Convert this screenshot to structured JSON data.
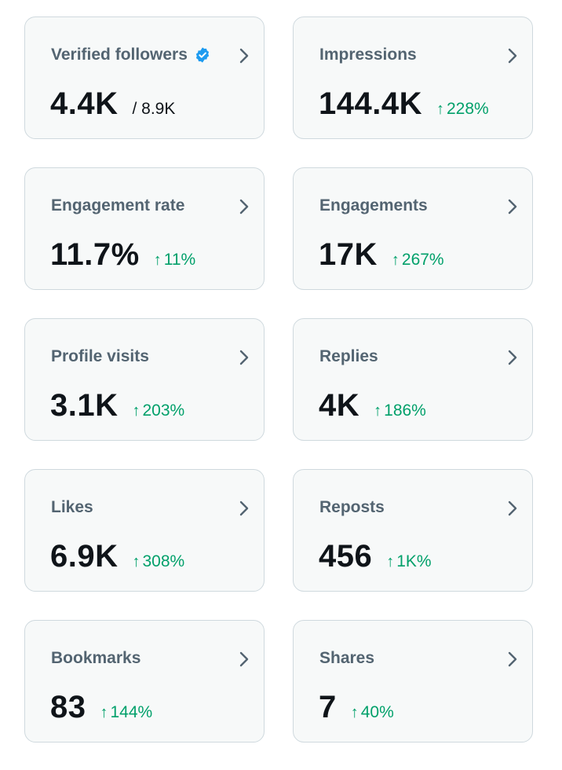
{
  "colors": {
    "card_background": "#f7f9f9",
    "card_border": "#cfd9de",
    "title": "#536471",
    "value": "#0f1419",
    "positive_delta": "#00a06a",
    "verified_badge": "#1d9bf0",
    "chevron": "#536471"
  },
  "metrics": [
    {
      "title": "Verified followers",
      "value": "4.4K",
      "secondary": "/ 8.9K",
      "verified_icon": "verified-badge-icon"
    },
    {
      "title": "Impressions",
      "value": "144.4K",
      "delta": "228%",
      "delta_icon": "arrow-up-icon"
    },
    {
      "title": "Engagement rate",
      "value": "11.7%",
      "delta": "11%",
      "delta_icon": "arrow-up-icon"
    },
    {
      "title": "Engagements",
      "value": "17K",
      "delta": "267%",
      "delta_icon": "arrow-up-icon"
    },
    {
      "title": "Profile visits",
      "value": "3.1K",
      "delta": "203%",
      "delta_icon": "arrow-up-icon"
    },
    {
      "title": "Replies",
      "value": "4K",
      "delta": "186%",
      "delta_icon": "arrow-up-icon"
    },
    {
      "title": "Likes",
      "value": "6.9K",
      "delta": "308%",
      "delta_icon": "arrow-up-icon"
    },
    {
      "title": "Reposts",
      "value": "456",
      "delta": "1K%",
      "delta_icon": "arrow-up-icon"
    },
    {
      "title": "Bookmarks",
      "value": "83",
      "delta": "144%",
      "delta_icon": "arrow-up-icon"
    },
    {
      "title": "Shares",
      "value": "7",
      "delta": "40%",
      "delta_icon": "arrow-up-icon"
    }
  ]
}
